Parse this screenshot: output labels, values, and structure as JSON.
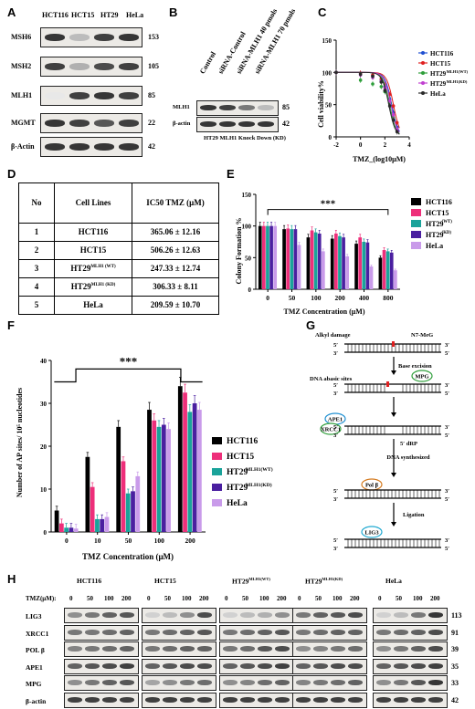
{
  "A": {
    "label": "A",
    "cells": [
      "HCT116",
      "HCT15",
      "HT29",
      "HeLa"
    ],
    "rows": [
      {
        "name": "MSH6",
        "kda": "153",
        "levels": [
          0.9,
          0.3,
          0.85,
          0.9
        ]
      },
      {
        "name": "MSH2",
        "kda": "105",
        "levels": [
          0.85,
          0.35,
          0.8,
          0.85
        ]
      },
      {
        "name": "MLH1",
        "kda": "85",
        "levels": [
          0.1,
          0.85,
          0.9,
          0.85
        ]
      },
      {
        "name": "MGMT",
        "kda": "22",
        "levels": [
          0.9,
          0.85,
          0.75,
          0.85
        ]
      },
      {
        "name": "β-Actin",
        "kda": "42",
        "levels": [
          0.9,
          0.9,
          0.9,
          0.9
        ]
      }
    ]
  },
  "B": {
    "label": "B",
    "lanes": [
      "Control",
      "siRNA-Control",
      "siRNA-MLH1 40 pmols",
      "siRNA-MLH1 70 pmols"
    ],
    "rows": [
      {
        "name": "MLH1",
        "kda": "85",
        "levels": [
          0.9,
          0.85,
          0.6,
          0.3
        ]
      },
      {
        "name": "β-actin",
        "kda": "42",
        "levels": [
          0.9,
          0.9,
          0.9,
          0.9
        ]
      }
    ],
    "caption": "HT29 MLH1 Knock Down (KD)"
  },
  "C": {
    "label": "C",
    "chart_data": {
      "type": "line",
      "xlabel": "TMZ_(log10μM)",
      "ylabel": "Cell viability%",
      "xlim": [
        -2,
        4
      ],
      "ylim": [
        0,
        150
      ],
      "xticks": [
        "-2",
        "0",
        "2",
        "4"
      ],
      "yticks": [
        "0",
        "50",
        "100",
        "150"
      ],
      "series": [
        {
          "name": "HCT116",
          "color": "#1f4fd1",
          "ic50": 2.56,
          "x": [
            -2,
            0,
            1,
            1.7,
            2,
            2.4,
            2.7,
            3
          ],
          "y": [
            100,
            98,
            95,
            88,
            78,
            58,
            38,
            15
          ]
        },
        {
          "name": "HCT15",
          "color": "#e02020",
          "ic50": 2.7,
          "x": [
            -2,
            0,
            1,
            1.7,
            2,
            2.4,
            2.7,
            3
          ],
          "y": [
            100,
            99,
            96,
            90,
            82,
            66,
            48,
            22
          ]
        },
        {
          "name": "HT29",
          "sup": "MLH1(WT)",
          "color": "#2e9e3a",
          "ic50": 2.39,
          "x": [
            -2,
            0,
            1,
            1.7,
            2,
            2.4,
            2.7,
            3
          ],
          "y": [
            100,
            88,
            82,
            78,
            70,
            52,
            30,
            10
          ]
        },
        {
          "name": "HT29",
          "sup": "MLH1(KD)",
          "color": "#c03fd0",
          "ic50": 2.49,
          "x": [
            -2,
            0,
            1,
            1.7,
            2,
            2.4,
            2.7,
            3
          ],
          "y": [
            100,
            96,
            92,
            86,
            76,
            56,
            34,
            12
          ]
        },
        {
          "name": "HeLa",
          "color": "#2a2a2a",
          "ic50": 2.32,
          "x": [
            -2,
            0,
            1,
            1.7,
            2,
            2.4,
            2.7,
            3
          ],
          "y": [
            100,
            97,
            94,
            85,
            72,
            48,
            26,
            8
          ]
        }
      ]
    }
  },
  "D": {
    "label": "D",
    "headers": [
      "No",
      "Cell Lines",
      "IC50 TMZ (μM)"
    ],
    "rows": [
      {
        "no": "1",
        "cell": "HCT116",
        "sup": "",
        "value": "365.06 ± 12.16"
      },
      {
        "no": "2",
        "cell": "HCT15",
        "sup": "",
        "value": "506.26 ± 12.63"
      },
      {
        "no": "3",
        "cell": "HT29",
        "sup": "MLH1 (WT)",
        "value": "247.33 ± 12.74"
      },
      {
        "no": "4",
        "cell": "HT29",
        "sup": "MLH1 (KD)",
        "value": "306.33 ± 8.11"
      },
      {
        "no": "5",
        "cell": "HeLa",
        "sup": "",
        "value": "209.59 ± 10.70"
      }
    ]
  },
  "E": {
    "label": "E",
    "chart_data": {
      "type": "bar",
      "xlabel": "TMZ Concentration (μM)",
      "ylabel": "Colony Formation %",
      "ylim": [
        0,
        150
      ],
      "yticks": [
        "0",
        "50",
        "100",
        "150"
      ],
      "categories": [
        "0",
        "50",
        "100",
        "200",
        "400",
        "800"
      ],
      "significance": "***",
      "series": [
        {
          "name": "HCT116",
          "color": "#000000",
          "values": [
            100,
            95,
            82,
            80,
            72,
            50
          ]
        },
        {
          "name": "HCT15",
          "color": "#ee2f7a",
          "values": [
            100,
            96,
            93,
            88,
            82,
            62
          ]
        },
        {
          "name": "HT29",
          "sup": "(WT)",
          "color": "#1aa39a",
          "values": [
            100,
            95,
            90,
            84,
            75,
            60
          ]
        },
        {
          "name": "HT29",
          "sup": "(KD)",
          "color": "#4a1fa0",
          "values": [
            100,
            95,
            88,
            82,
            74,
            58
          ]
        },
        {
          "name": "HeLa",
          "color": "#c99bea",
          "values": [
            100,
            70,
            60,
            52,
            36,
            30
          ]
        }
      ]
    }
  },
  "F": {
    "label": "F",
    "chart_data": {
      "type": "bar",
      "xlabel": "TMZ Concentration (μM)",
      "ylabel": "Number of AP sites/ 10⁵ nucleotides",
      "ylim": [
        0,
        40
      ],
      "yticks": [
        "0",
        "10",
        "20",
        "30",
        "40"
      ],
      "categories": [
        "0",
        "10",
        "50",
        "100",
        "200"
      ],
      "significance": "***",
      "series": [
        {
          "name": "HCT116",
          "color": "#000000",
          "values": [
            5,
            17.5,
            24.5,
            28.5,
            34
          ]
        },
        {
          "name": "HCT15",
          "color": "#ee2f7a",
          "values": [
            2,
            10.5,
            16.5,
            26,
            32.5
          ]
        },
        {
          "name": "HT29",
          "sup": "MLH1(WT)",
          "color": "#1aa39a",
          "values": [
            1,
            3,
            9,
            24.5,
            28
          ]
        },
        {
          "name": "HT29",
          "sup": "MLH1(KD)",
          "color": "#4a1fa0",
          "values": [
            1,
            3,
            9.5,
            25,
            30
          ]
        },
        {
          "name": "HeLa",
          "color": "#c99bea",
          "values": [
            0.8,
            3.5,
            13,
            24,
            28.5
          ]
        }
      ]
    }
  },
  "G": {
    "label": "G",
    "steps": [
      {
        "text": "Alkyl damage",
        "mark": "N7-MeG"
      },
      {
        "text": "Base excision",
        "site": "DNA abasic sites",
        "enzyme": "MPG"
      },
      {
        "enzyme1": "APE1",
        "enzyme2": "XRCC1",
        "mark": "5′ dRP"
      },
      {
        "text": "DNA synthesized",
        "enzyme": "Pol β"
      },
      {
        "text": "Ligation",
        "enzyme": "LIG3"
      }
    ],
    "primes": [
      "5′",
      "3′"
    ]
  },
  "H": {
    "label": "H",
    "tmz_label": "TMZ(μM):",
    "doses": [
      "0",
      "50",
      "100",
      "200"
    ],
    "groups": [
      {
        "name": "HCT116",
        "sup": ""
      },
      {
        "name": "HCT15",
        "sup": ""
      },
      {
        "name": "HT29",
        "sup": "MLH1(WT)"
      },
      {
        "name": "HT29",
        "sup": "MLH1(KD)"
      },
      {
        "name": "HeLa",
        "sup": ""
      }
    ],
    "rows": [
      {
        "name": "LIG3",
        "kda": "113"
      },
      {
        "name": "XRCC1",
        "kda": "91"
      },
      {
        "name": "POL β",
        "kda": "39"
      },
      {
        "name": "APE1",
        "kda": "35"
      },
      {
        "name": "MPG",
        "kda": "33"
      },
      {
        "name": "β-actin",
        "kda": "42"
      }
    ]
  }
}
